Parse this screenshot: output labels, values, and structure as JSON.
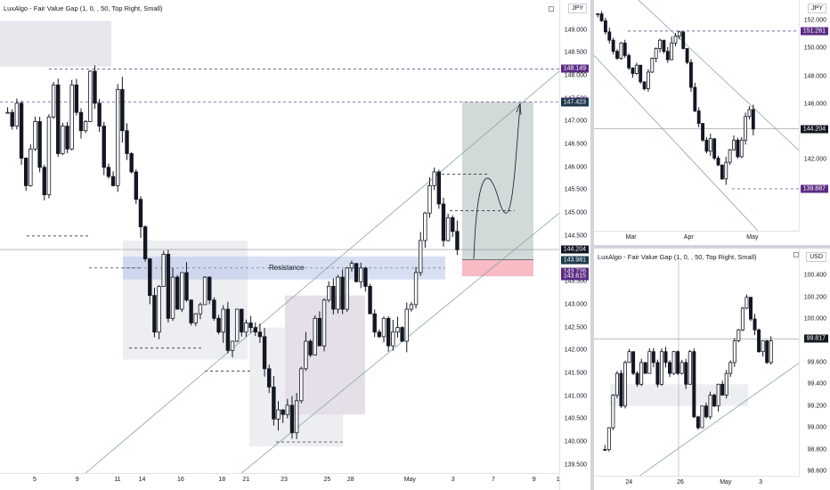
{
  "main": {
    "indicator_title": "LuxAlgo - Fair Value Gap (1, 0, , 50, Top Right, Small)",
    "currency": "JPY",
    "resistance_label": "Resistance",
    "y_ticks": [
      "149.000",
      "148.500",
      "148.000",
      "147.500",
      "147.000",
      "146.500",
      "146.000",
      "145.500",
      "145.000",
      "144.500",
      "144.000",
      "143.500",
      "143.000",
      "142.500",
      "142.000",
      "141.500",
      "141.000",
      "140.500",
      "140.000",
      "139.500"
    ],
    "x_ticks": [
      "5",
      "9",
      "11",
      "14",
      "16",
      "18",
      "21",
      "23",
      "25",
      "28",
      "May",
      "3",
      "7",
      "9",
      "1"
    ],
    "tags": [
      {
        "text": "148.149",
        "color": "#5b2c83",
        "price": 148.149
      },
      {
        "text": "147.431",
        "color": "#5b2c83",
        "price": 147.431
      },
      {
        "text": "147.423",
        "color": "#1e3a4c",
        "price": 147.423
      },
      {
        "text": "144.204",
        "color": "#131722",
        "price": 144.204
      },
      {
        "text": "143.981",
        "color": "#1e3a4c",
        "price": 143.981
      },
      {
        "text": "143.726",
        "color": "#5b2c83",
        "price": 143.726
      },
      {
        "text": "143.615",
        "color": "#5b2c83",
        "price": 143.615
      }
    ],
    "colors": {
      "up": "#131722",
      "down": "#131722",
      "tp_zone": "#7b968f",
      "sl_zone": "#f7b3bd",
      "resistance": "#b7c4ea",
      "fvg": "#c9cbd4"
    }
  },
  "top_right": {
    "currency": "JPY",
    "y_ticks": [
      "152.000",
      "150.000",
      "148.000",
      "146.000",
      "144.000",
      "142.000"
    ],
    "x_ticks": [
      "Mar",
      "Apr",
      "May"
    ],
    "tags": [
      {
        "text": "151.261",
        "color": "#5b2c83",
        "price": 151.261
      },
      {
        "text": "144.204",
        "color": "#131722",
        "price": 144.204
      },
      {
        "text": "139.887",
        "color": "#5b2c83",
        "price": 139.887
      }
    ]
  },
  "bottom_right": {
    "indicator_title": "LuxAlgo - Fair Value Gap (1, 0, , 50, Top Right, Small)",
    "currency": "USD",
    "y_ticks": [
      "100.400",
      "100.200",
      "100.000",
      "99.800",
      "99.600",
      "99.400",
      "99.200",
      "99.000",
      "98.800",
      "98.600"
    ],
    "x_ticks": [
      "24",
      "26",
      "May",
      "3"
    ],
    "tags": [
      {
        "text": "99.817",
        "color": "#131722",
        "price": 99.817
      }
    ]
  },
  "chart_data": [
    {
      "type": "candlestick",
      "title": "LuxAlgo - Fair Value Gap (1, 0, , 50, Top Right, Small)",
      "currency": "JPY",
      "ylim": [
        139.3,
        149.5
      ],
      "x_labels": [
        "5",
        "9",
        "11",
        "14",
        "16",
        "18",
        "21",
        "23",
        "25",
        "28",
        "May",
        "3",
        "7",
        "9",
        "1"
      ],
      "close_path": [
        147.2,
        146.9,
        147.4,
        146.2,
        145.6,
        146.4,
        147.0,
        146.0,
        145.4,
        147.1,
        147.8,
        146.3,
        146.9,
        146.4,
        147.8,
        147.2,
        146.8,
        147.0,
        148.1,
        147.4,
        146.9,
        146.0,
        145.8,
        145.6,
        147.7,
        146.8,
        146.3,
        145.9,
        145.3,
        144.7,
        144.0,
        143.2,
        142.4,
        143.4,
        144.1,
        142.7,
        143.6,
        142.9,
        143.7,
        143.1,
        142.6,
        142.8,
        143.0,
        143.6,
        143.1,
        142.7,
        142.4,
        142.9,
        142.0,
        142.2,
        142.9,
        142.4,
        142.6,
        142.5,
        142.4,
        142.3,
        141.6,
        141.2,
        140.5,
        140.7,
        140.6,
        140.8,
        140.2,
        140.9,
        141.6,
        142.2,
        141.9,
        142.7,
        142.1,
        143.1,
        143.4,
        142.9,
        143.6,
        142.9,
        143.8,
        143.9,
        143.5,
        143.8,
        143.4,
        142.8,
        142.4,
        142.3,
        142.7,
        142.1,
        142.4,
        142.5,
        142.2,
        142.9,
        143.0,
        143.7,
        144.4,
        145.0,
        145.6,
        145.9,
        145.2,
        144.4,
        144.9,
        144.6,
        144.2
      ]
    },
    {
      "type": "candlestick",
      "currency": "JPY",
      "ylim": [
        136.8,
        153.5
      ],
      "x_labels": [
        "Mar",
        "Apr",
        "May"
      ],
      "close_path": [
        152.5,
        152.0,
        151.2,
        150.6,
        149.8,
        149.3,
        150.4,
        149.5,
        148.6,
        148.2,
        148.8,
        147.6,
        147.1,
        148.3,
        149.3,
        150.0,
        150.6,
        149.8,
        149.2,
        150.4,
        150.9,
        151.2,
        150.0,
        149.0,
        147.2,
        145.5,
        144.6,
        143.4,
        142.6,
        143.5,
        142.1,
        141.6,
        140.6,
        141.8,
        142.7,
        143.4,
        142.2,
        143.4,
        145.1,
        145.6,
        144.2
      ]
    },
    {
      "type": "candlestick",
      "currency": "USD",
      "ylim": [
        98.55,
        100.55
      ],
      "x_labels": [
        "24",
        "26",
        "May",
        "3"
      ],
      "close_path": [
        98.8,
        99.0,
        99.3,
        99.5,
        99.2,
        99.6,
        99.7,
        99.5,
        99.4,
        99.6,
        99.5,
        99.7,
        99.6,
        99.4,
        99.7,
        99.6,
        99.5,
        99.7,
        99.5,
        99.6,
        99.4,
        99.7,
        99.1,
        99.0,
        99.2,
        99.1,
        99.3,
        99.2,
        99.4,
        99.3,
        99.5,
        99.6,
        99.8,
        99.9,
        100.1,
        100.2,
        100.0,
        99.9,
        99.7,
        99.8,
        99.6,
        99.8
      ]
    }
  ]
}
